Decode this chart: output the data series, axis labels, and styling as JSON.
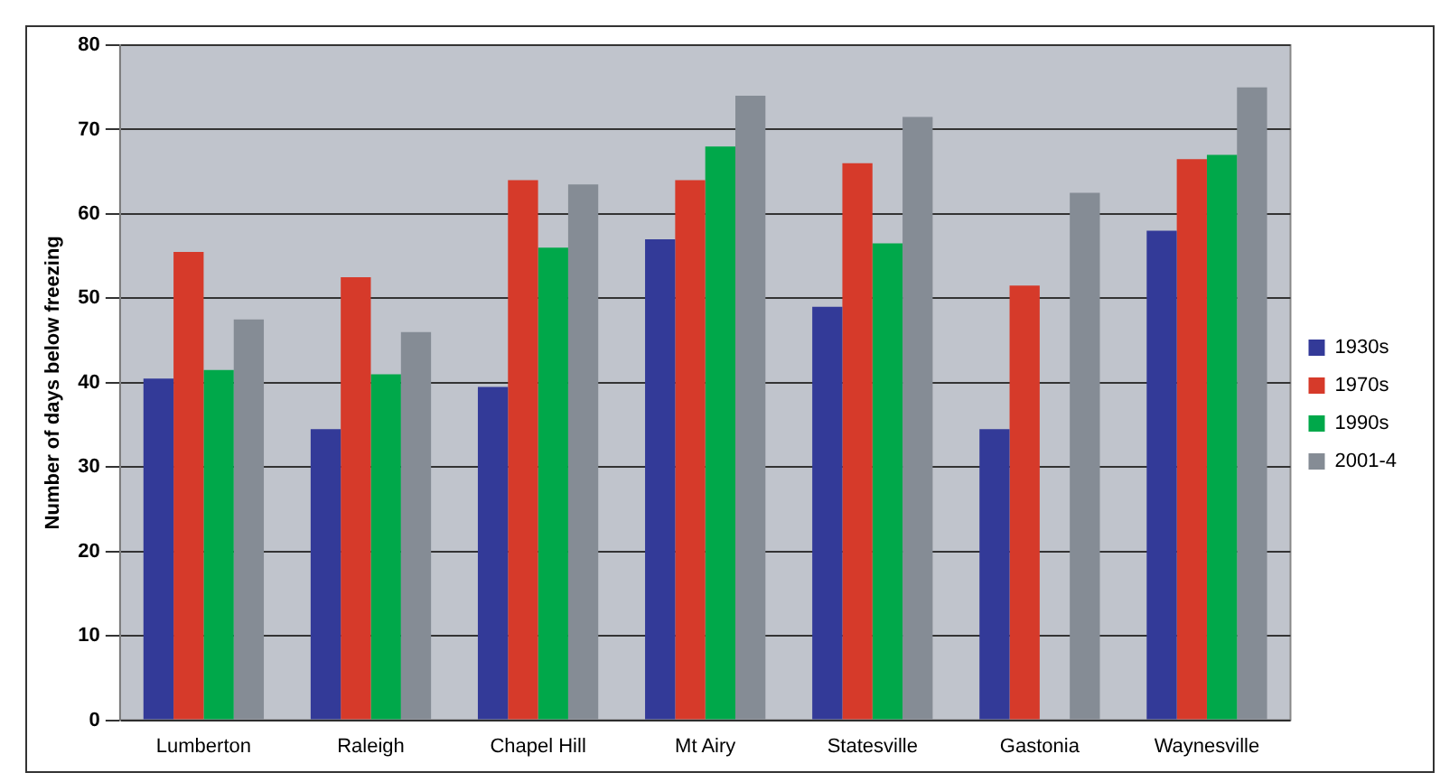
{
  "chart_data": {
    "type": "bar",
    "ylabel": "Number of days below freezing",
    "categories": [
      "Lumberton",
      "Raleigh",
      "Chapel Hill",
      "Mt Airy",
      "Statesville",
      "Gastonia",
      "Waynesville"
    ],
    "series": [
      {
        "name": "1930s",
        "color": "#333a98",
        "values": [
          40.5,
          34.5,
          39.5,
          57,
          49,
          34.5,
          58
        ]
      },
      {
        "name": "1970s",
        "color": "#d63a2a",
        "values": [
          55.5,
          52.5,
          64,
          64,
          66,
          51.5,
          66.5
        ]
      },
      {
        "name": "1990s",
        "color": "#00a84a",
        "values": [
          41.5,
          41,
          56,
          68,
          56.5,
          null,
          67
        ]
      },
      {
        "name": "2001-4",
        "color": "#858c95",
        "values": [
          47.5,
          46,
          63.5,
          74,
          71.5,
          62.5,
          75
        ]
      }
    ],
    "ylim": [
      0,
      80
    ],
    "yticks": [
      0,
      10,
      20,
      30,
      40,
      50,
      60,
      70,
      80
    ],
    "grid": "y",
    "legend": "right"
  }
}
